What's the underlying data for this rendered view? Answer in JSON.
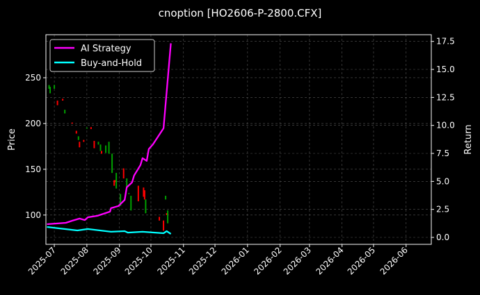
{
  "chart_data": {
    "type": "line",
    "title": "cnoption [HO2606-P-2800.CFX]",
    "ylabel": "Price",
    "y2label": "Return",
    "ylim": [
      68,
      297
    ],
    "y2lim": [
      -0.62,
      18.1
    ],
    "xlim": [
      "2025-06-23",
      "2026-06-25"
    ],
    "yticks": [
      100,
      150,
      200,
      250
    ],
    "y2ticks": [
      0.0,
      2.5,
      5.0,
      7.5,
      10.0,
      12.5,
      15.0,
      17.5
    ],
    "y2tick_labels": [
      "0.0",
      "2.5",
      "5.0",
      "7.5",
      "10.0",
      "12.5",
      "15.0",
      "17.5"
    ],
    "xticks": [
      "2025-07",
      "2025-08",
      "2025-09",
      "2025-10",
      "2025-11",
      "2025-12",
      "2026-01",
      "2026-02",
      "2026-03",
      "2026-04",
      "2026-05",
      "2026-06"
    ],
    "grid": true,
    "legend_position": "top-left",
    "colors": {
      "up": "#00a000",
      "down": "#ff0000",
      "ai": "#ff00ff",
      "bh": "#00ffff"
    },
    "candles": [
      [
        "2025-06-26",
        238,
        242,
        238,
        242
      ],
      [
        "2025-06-27",
        233,
        240,
        233,
        240
      ],
      [
        "2025-07-01",
        238,
        242,
        238,
        242
      ],
      [
        "2025-07-04",
        225,
        225,
        220,
        220
      ],
      [
        "2025-07-09",
        227,
        227,
        225,
        225
      ],
      [
        "2025-07-11",
        211,
        215,
        211,
        215
      ],
      [
        "2025-07-18",
        201,
        201,
        200,
        200
      ],
      [
        "2025-07-22",
        192,
        192,
        189,
        189
      ],
      [
        "2025-07-24",
        182,
        186,
        182,
        186
      ],
      [
        "2025-07-25",
        180,
        180,
        174,
        174
      ],
      [
        "2025-07-29",
        182,
        182,
        180,
        180
      ],
      [
        "2025-08-01",
        195,
        195.5,
        195,
        195.5
      ],
      [
        "2025-08-05",
        196,
        196,
        194,
        194
      ],
      [
        "2025-08-08",
        181,
        181,
        173,
        173
      ],
      [
        "2025-08-12",
        177,
        180,
        177,
        180
      ],
      [
        "2025-08-14",
        170,
        177,
        170,
        177
      ],
      [
        "2025-08-15",
        170,
        170,
        167,
        167
      ],
      [
        "2025-08-19",
        168,
        176,
        168,
        176
      ],
      [
        "2025-08-22",
        167,
        180,
        167,
        180
      ],
      [
        "2025-08-25",
        146,
        167,
        146,
        167
      ],
      [
        "2025-08-27",
        138,
        138,
        132,
        132
      ],
      [
        "2025-08-28",
        138,
        138,
        136,
        136
      ],
      [
        "2025-08-29",
        129,
        146,
        129,
        146
      ],
      [
        "2025-09-02",
        110,
        123,
        110,
        123
      ],
      [
        "2025-09-05",
        151,
        151,
        140,
        140
      ],
      [
        "2025-09-08",
        130,
        140,
        130,
        140
      ],
      [
        "2025-09-10",
        123,
        124,
        123,
        124
      ],
      [
        "2025-09-12",
        105,
        121,
        105,
        121
      ],
      [
        "2025-09-19",
        132,
        132,
        115,
        115
      ],
      [
        "2025-09-24",
        130,
        130,
        120,
        120
      ],
      [
        "2025-09-25",
        127,
        127,
        117,
        117
      ],
      [
        "2025-09-26",
        102,
        117,
        102,
        117
      ],
      [
        "2025-10-09",
        98,
        98,
        94,
        94
      ],
      [
        "2025-10-13",
        94,
        94,
        83,
        83
      ],
      [
        "2025-10-15",
        117,
        121,
        117,
        121
      ],
      [
        "2025-10-16",
        102,
        102,
        100,
        100
      ],
      [
        "2025-10-17",
        91,
        105,
        91,
        105
      ]
    ],
    "series": [
      {
        "name": "AI Strategy",
        "axis": "right",
        "points": [
          [
            "2025-06-24",
            1.18
          ],
          [
            "2025-07-12",
            1.3
          ],
          [
            "2025-07-18",
            1.49
          ],
          [
            "2025-07-25",
            1.68
          ],
          [
            "2025-07-30",
            1.55
          ],
          [
            "2025-08-02",
            1.8
          ],
          [
            "2025-08-11",
            1.93
          ],
          [
            "2025-08-23",
            2.3
          ],
          [
            "2025-08-24",
            2.61
          ],
          [
            "2025-08-31",
            2.8
          ],
          [
            "2025-09-06",
            3.35
          ],
          [
            "2025-09-08",
            4.47
          ],
          [
            "2025-09-13",
            4.91
          ],
          [
            "2025-09-15",
            5.53
          ],
          [
            "2025-09-21",
            6.46
          ],
          [
            "2025-09-23",
            7.08
          ],
          [
            "2025-09-27",
            6.83
          ],
          [
            "2025-09-29",
            7.89
          ],
          [
            "2025-10-03",
            8.32
          ],
          [
            "2025-10-13",
            9.75
          ],
          [
            "2025-10-15",
            11.93
          ],
          [
            "2025-10-20",
            17.33
          ]
        ]
      },
      {
        "name": "Buy-and-Hold",
        "axis": "right",
        "points": [
          [
            "2025-06-24",
            0.93
          ],
          [
            "2025-07-23",
            0.62
          ],
          [
            "2025-08-02",
            0.75
          ],
          [
            "2025-08-24",
            0.5
          ],
          [
            "2025-09-06",
            0.56
          ],
          [
            "2025-09-09",
            0.43
          ],
          [
            "2025-09-23",
            0.5
          ],
          [
            "2025-10-13",
            0.37
          ],
          [
            "2025-10-16",
            0.56
          ],
          [
            "2025-10-20",
            0.31
          ]
        ]
      }
    ]
  }
}
